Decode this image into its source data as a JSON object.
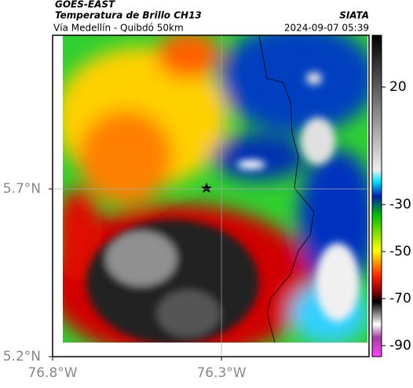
{
  "header": {
    "satellite": "GOES-EAST",
    "product": "Temperatura de Brillo CH13",
    "source": "SIATA",
    "route": "Vía Medellín - Quibdó 50km",
    "timestamp": "2024-09-07 05:39"
  },
  "map": {
    "xlim": [
      -76.8,
      -75.863
    ],
    "ylim": [
      5.2,
      6.158
    ],
    "xticks": [
      {
        "value": -76.8,
        "label": "76.8°W"
      },
      {
        "value": -76.3,
        "label": "76.3°W"
      }
    ],
    "yticks": [
      {
        "value": 5.7,
        "label": "5.7°N"
      },
      {
        "value": 5.2,
        "label": "5.2°N"
      }
    ],
    "grid": true
  },
  "colorbar": {
    "lim": [
      -94.7,
      42
    ],
    "ticks": [
      20,
      -30,
      -50,
      -70,
      -90
    ]
  }
}
